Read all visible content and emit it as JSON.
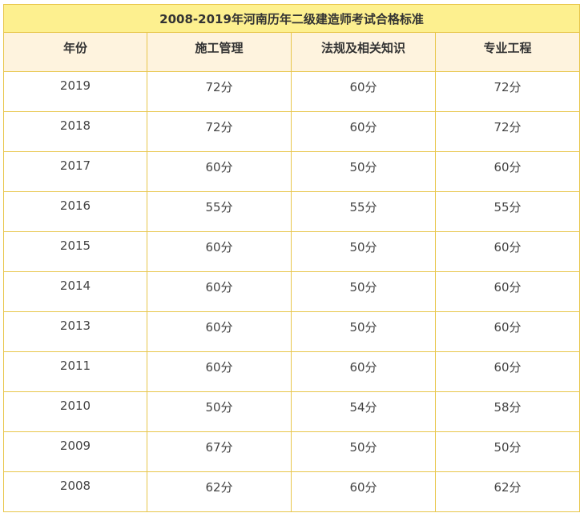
{
  "table": {
    "title": "2008-2019年河南历年二级建造师考试合格标准",
    "headers": [
      "年份",
      "施工管理",
      "法规及相关知识",
      "专业工程"
    ],
    "rows": [
      [
        "2019",
        "72分",
        "60分",
        "72分"
      ],
      [
        "2018",
        "72分",
        "60分",
        "72分"
      ],
      [
        "2017",
        "60分",
        "50分",
        "60分"
      ],
      [
        "2016",
        "55分",
        "55分",
        "55分"
      ],
      [
        "2015",
        "60分",
        "50分",
        "60分"
      ],
      [
        "2014",
        "60分",
        "50分",
        "60分"
      ],
      [
        "2013",
        "60分",
        "50分",
        "60分"
      ],
      [
        "2011",
        "60分",
        "60分",
        "60分"
      ],
      [
        "2010",
        "50分",
        "54分",
        "58分"
      ],
      [
        "2009",
        "67分",
        "50分",
        "50分"
      ],
      [
        "2008",
        "62分",
        "60分",
        "62分"
      ]
    ]
  },
  "colors": {
    "title_bg": "#fdf08f",
    "header_bg": "#fef3de",
    "border": "#e8c64a"
  }
}
